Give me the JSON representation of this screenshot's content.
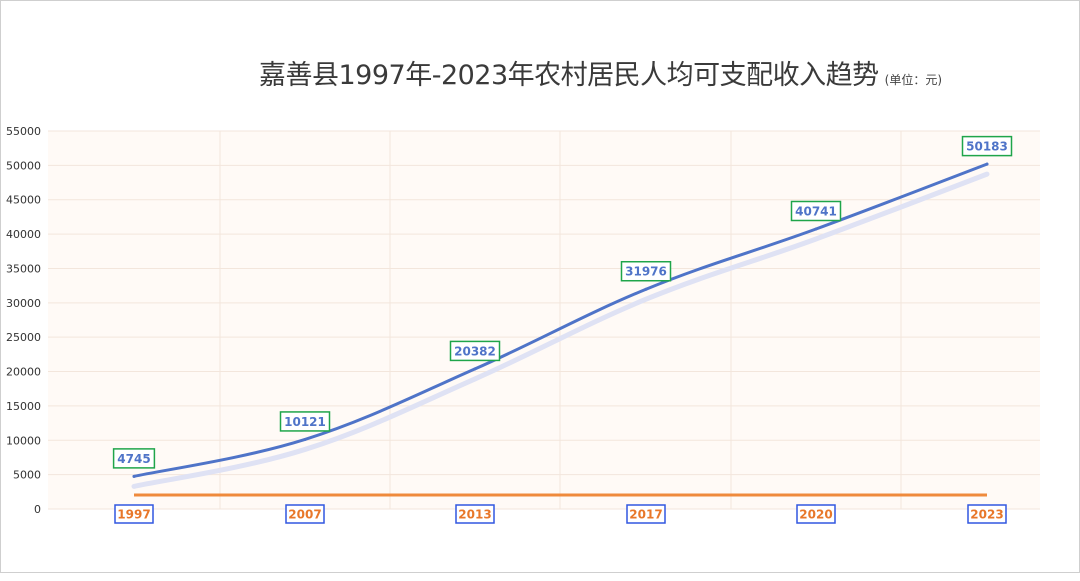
{
  "title": "嘉善县1997年-2023年农村居民人均可支配收入趋势",
  "subtitle": "(单位：元)",
  "colors": {
    "series_line": "#4f74c8",
    "shadow_line": "#dfe2f4",
    "baseline": "#ef8a3c",
    "value_label_border": "#1fa54a",
    "year_label_border": "#3157e0",
    "year_label_text": "#e8772a",
    "plot_background": "#fffaf6"
  },
  "chart_data": {
    "type": "line",
    "title": "嘉善县1997年-2023年农村居民人均可支配收入趋势",
    "subtitle": "(单位：元)",
    "xlabel": "",
    "ylabel": "",
    "categories": [
      "1997",
      "2007",
      "2013",
      "2017",
      "2020",
      "2023"
    ],
    "series": [
      {
        "values": [
          4745,
          10121,
          20382,
          31976,
          40741,
          50183
        ]
      }
    ],
    "data_labels": [
      "4745",
      "10121",
      "20382",
      "31976",
      "40741",
      "50183"
    ],
    "ylim": [
      0,
      55000
    ],
    "yticks": [
      "0",
      "5000",
      "10000",
      "15000",
      "20000",
      "25000",
      "30000",
      "35000",
      "40000",
      "45000",
      "50000",
      "55000"
    ],
    "grid": true,
    "legend": "none"
  }
}
